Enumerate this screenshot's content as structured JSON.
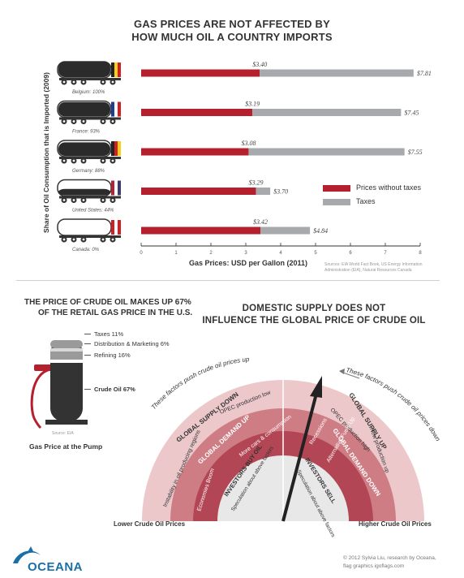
{
  "title_line1": "GAS PRICES ARE NOT AFFECTED BY",
  "title_line2": "HOW MUCH OIL A COUNTRY IMPORTS",
  "chart_data": {
    "type": "bar",
    "orientation": "horizontal",
    "stacked": true,
    "title": "GAS PRICES ARE NOT AFFECTED BY HOW MUCH OIL A COUNTRY IMPORTS",
    "ylabel": "Share of Oil Consumption that is Imported (2009)",
    "xlabel": "Gas Prices: USD per Gallon (2011)",
    "xlim": [
      0,
      8
    ],
    "xticks": [
      "0",
      "1",
      "2",
      "3",
      "4",
      "5",
      "6",
      "7",
      "8"
    ],
    "categories": [
      "Belgium: 100%",
      "France: 93%",
      "Germany: 88%",
      "United States: 44%",
      "Canada: 0%"
    ],
    "series": [
      {
        "name": "Prices without taxes",
        "color": "#b5202e",
        "values": [
          3.4,
          3.19,
          3.08,
          3.29,
          3.42
        ],
        "labels": [
          "$3.40",
          "$3.19",
          "$3.08",
          "$3.29",
          "$3.42"
        ]
      },
      {
        "name": "Taxes",
        "color": "#a7a9ac",
        "values": [
          4.41,
          4.26,
          4.47,
          0.41,
          1.42
        ]
      }
    ],
    "totals": [
      7.81,
      7.45,
      7.55,
      3.7,
      4.84
    ],
    "total_labels": [
      "$7.81",
      "$7.45",
      "$7.55",
      "$3.70",
      "$4.84"
    ],
    "legend": [
      "Prices without taxes",
      "Taxes"
    ],
    "legend_position": "right",
    "source": "Sources: EIA World Fact Book, US Energy Information Administration (EIA), Natural Resources Canada",
    "grid": false
  },
  "flags": [
    {
      "country": "Belgium",
      "colors": [
        "#222222",
        "#f7d117",
        "#d21f26"
      ]
    },
    {
      "country": "France",
      "colors": [
        "#1d3d8f",
        "#ffffff",
        "#d21f26"
      ]
    },
    {
      "country": "Germany",
      "colors": [
        "#222222",
        "#d21f26",
        "#f7d117"
      ]
    },
    {
      "country": "United States",
      "colors": [
        "#b22234",
        "#ffffff",
        "#3c3b6e"
      ]
    },
    {
      "country": "Canada",
      "colors": [
        "#d21f26",
        "#ffffff",
        "#d21f26"
      ]
    }
  ],
  "tank_fill": [
    1.0,
    0.93,
    0.88,
    0.44,
    0.0
  ],
  "crude": {
    "title_line1": "THE PRICE OF CRUDE OIL MAKES UP 67%",
    "title_line2": "OF THE RETAIL GAS PRICE IN THE U.S.",
    "labels": [
      "Taxes 11%",
      "Distribution & Marketing 6%",
      "Refining 16%",
      "Crude Oil 67%"
    ],
    "source": "Source: EIA",
    "caption": "Gas Price at the Pump"
  },
  "supply": {
    "title_line1": "DOMESTIC SUPPLY DOES NOT",
    "title_line2": "INFLUENCE THE GLOBAL PRICE OF CRUDE OIL",
    "left_arc_text": "These factors push crude oil prices up",
    "right_arc_text": "These factors push crude oil prices down",
    "global_supply_down": "GLOBAL SUPPLY DOWN",
    "opec_low": "OPEC production low",
    "instability": "Instability in oil producing regions",
    "global_demand_up": "GLOBAL DEMAND UP",
    "more_cars": "More cars & consumption",
    "economies_boom": "Economies Boom",
    "investors_buy": "INVESTORS BUY OIL",
    "spec_above": "Speculation about above factors",
    "global_supply_up": "GLOBAL SUPPLY UP",
    "opec_high": "OPEC production high",
    "new_production": "New production up",
    "global_demand_down": "GLOBAL DEMAND DOWN",
    "recessions": "Recessions",
    "alt_fuels": "Alternative Fuels Up",
    "investors_sell": "INVESTORS SELL",
    "spec_about": "Speculation about above factors",
    "lower": "Lower Crude Oil Prices",
    "higher": "Higher Crude Oil Prices",
    "colors": {
      "outer": "#ecc8cb",
      "middle": "#cf7d85",
      "inner": "#b34654",
      "core": "#e8e8e8",
      "needle": "#222222"
    }
  },
  "footer": {
    "brand": "OCEANA",
    "credit_line1": "© 2012 Sylvia Liu, research by  Oceana,",
    "credit_line2": "flag graphics igoflags.com"
  }
}
